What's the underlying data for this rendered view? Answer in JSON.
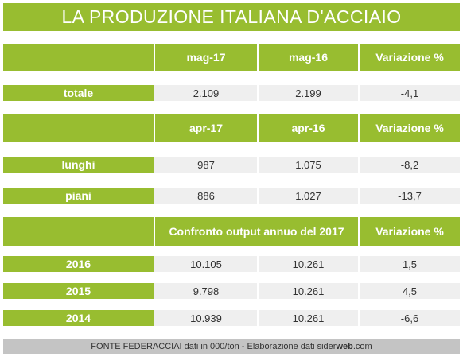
{
  "title": "LA PRODUZIONE ITALIANA D'ACCIAIO",
  "colors": {
    "accent": "#98bd30",
    "row_bg": "#efefef",
    "footer_bg": "#c4c4c4"
  },
  "chart_data": {
    "type": "table",
    "sections": [
      {
        "headers": [
          "",
          "mag-17",
          "mag-16",
          "Variazione %"
        ],
        "rows": [
          {
            "label": "totale",
            "values": [
              "2.109",
              "2.199",
              "-4,1"
            ]
          }
        ]
      },
      {
        "headers": [
          "",
          "apr-17",
          "apr-16",
          "Variazione %"
        ],
        "rows": [
          {
            "label": "lunghi",
            "values": [
              "987",
              "1.075",
              "-8,2"
            ]
          },
          {
            "label": "piani",
            "values": [
              "886",
              "1.027",
              "-13,7"
            ]
          }
        ]
      },
      {
        "headers": [
          "",
          "Confronto output annuo del 2017",
          "Variazione %"
        ],
        "rows": [
          {
            "label": "2016",
            "values": [
              "10.105",
              "10.261",
              "1,5"
            ]
          },
          {
            "label": "2015",
            "values": [
              "9.798",
              "10.261",
              "4,5"
            ]
          },
          {
            "label": "2014",
            "values": [
              "10.939",
              "10.261",
              "-6,6"
            ]
          }
        ]
      }
    ]
  },
  "footer": {
    "text": "FONTE FEDERACCIAI dati in 000/ton - Elaborazione dati ",
    "brand_prefix": "sider",
    "brand_bold": "web",
    "brand_suffix": ".com"
  }
}
